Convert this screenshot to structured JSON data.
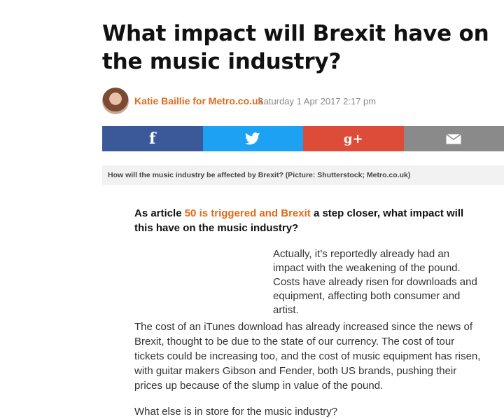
{
  "article": {
    "headline": "What impact will Brexit have on the music industry?",
    "author": "Katie Baillie for Metro.co.uk",
    "date": "Saturday 1 Apr 2017 2:17 pm"
  },
  "share": {
    "facebook": {
      "icon": "facebook-icon",
      "glyph": "f",
      "color": "#3b5998"
    },
    "twitter": {
      "icon": "twitter-icon",
      "color": "#1da1f2"
    },
    "google_plus": {
      "icon": "google-plus-icon",
      "glyph": "g+",
      "color": "#dd4b39"
    },
    "email": {
      "icon": "email-icon",
      "color": "#8a8a8a"
    }
  },
  "image_caption": "How will the music industry be affected by Brexit? (Picture: Shutterstock; Metro.co.uk)",
  "body": {
    "lead_before": "As article ",
    "lead_link": "50 is triggered and Brexit",
    "lead_after": " a step closer, what impact will this have on the music industry?",
    "pullquote": "Actually, it’s reportedly already had an impact with the weakening of the pound. Costs have already risen for downloads and equipment, affecting both consumer and artist.",
    "paragraph": "The cost of an iTunes download has already increased since the news of Brexit, thought to be due to the state of our currency. The cost of tour tickets could be increasing too, and the cost of music equipment has risen, with guitar makers Gibson and Fender, both US brands, pushing their prices up because of the slump in value of the pound.",
    "next_heading": "What else is in store for the music industry?"
  },
  "colors": {
    "accent": "#e06b1a"
  }
}
